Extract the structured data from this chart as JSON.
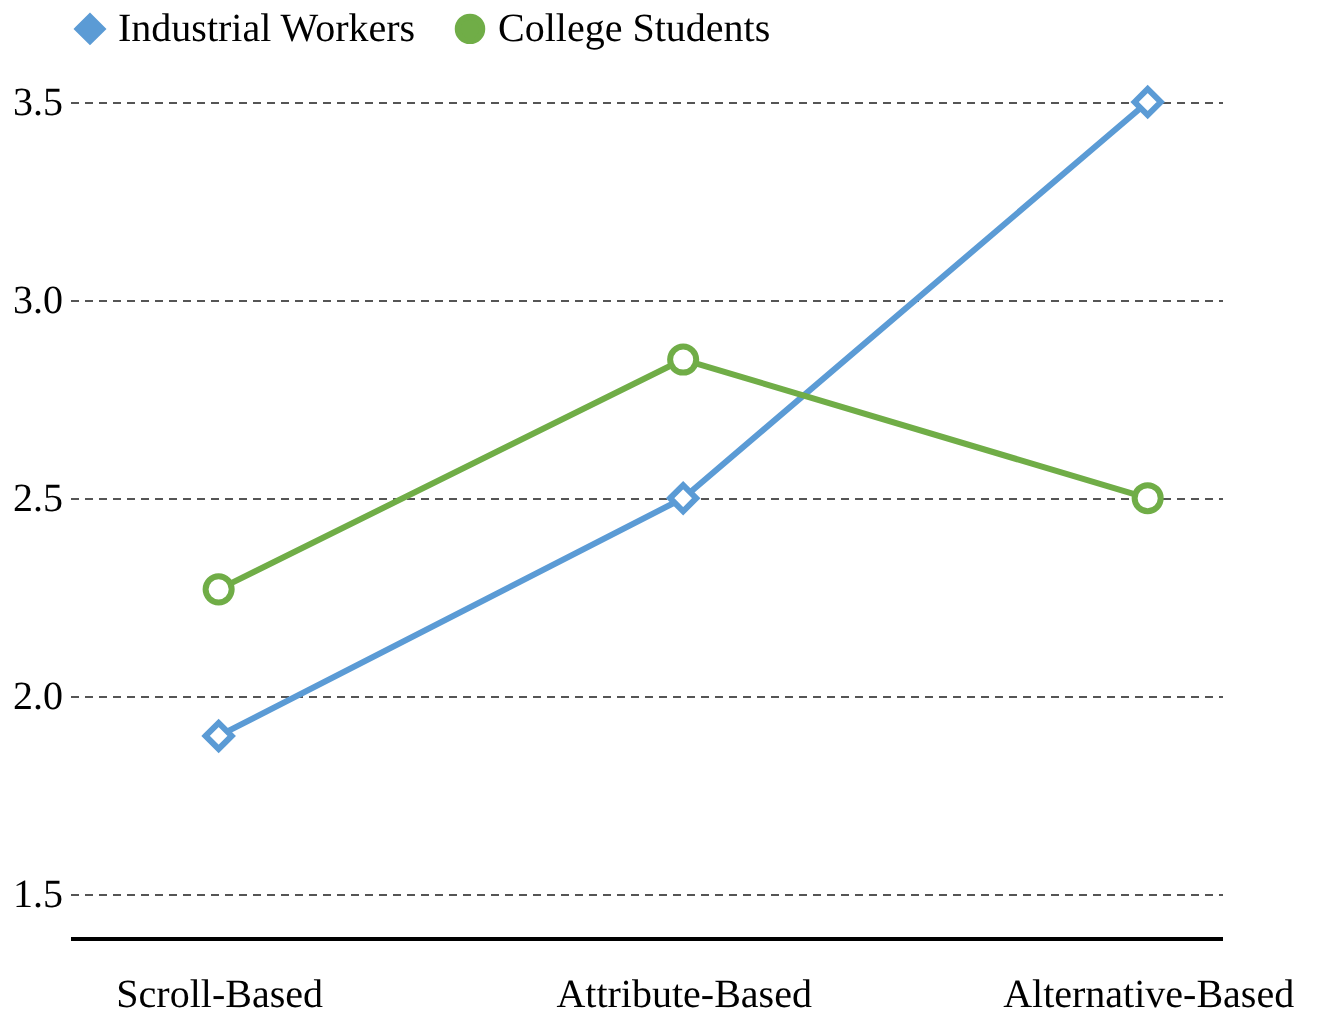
{
  "chart_data": {
    "type": "line",
    "categories": [
      "Scroll-Based",
      "Attribute-Based",
      "Alternative-Based"
    ],
    "series": [
      {
        "name": "Industrial Workers",
        "color": "#5b9bd5",
        "marker": "diamond",
        "values": [
          1.9,
          2.5,
          3.5
        ]
      },
      {
        "name": "College Students",
        "color": "#70ad47",
        "marker": "circle",
        "values": [
          2.27,
          2.85,
          2.5
        ]
      }
    ],
    "ylim": [
      1.39,
      3.5
    ],
    "yticks": [
      1.5,
      {
        "value": 2,
        "label": "2.0"
      },
      2.5,
      {
        "value": 3,
        "label": "3.0"
      },
      3.5
    ],
    "grid": "y",
    "legend": "top",
    "line_style": "solid"
  }
}
